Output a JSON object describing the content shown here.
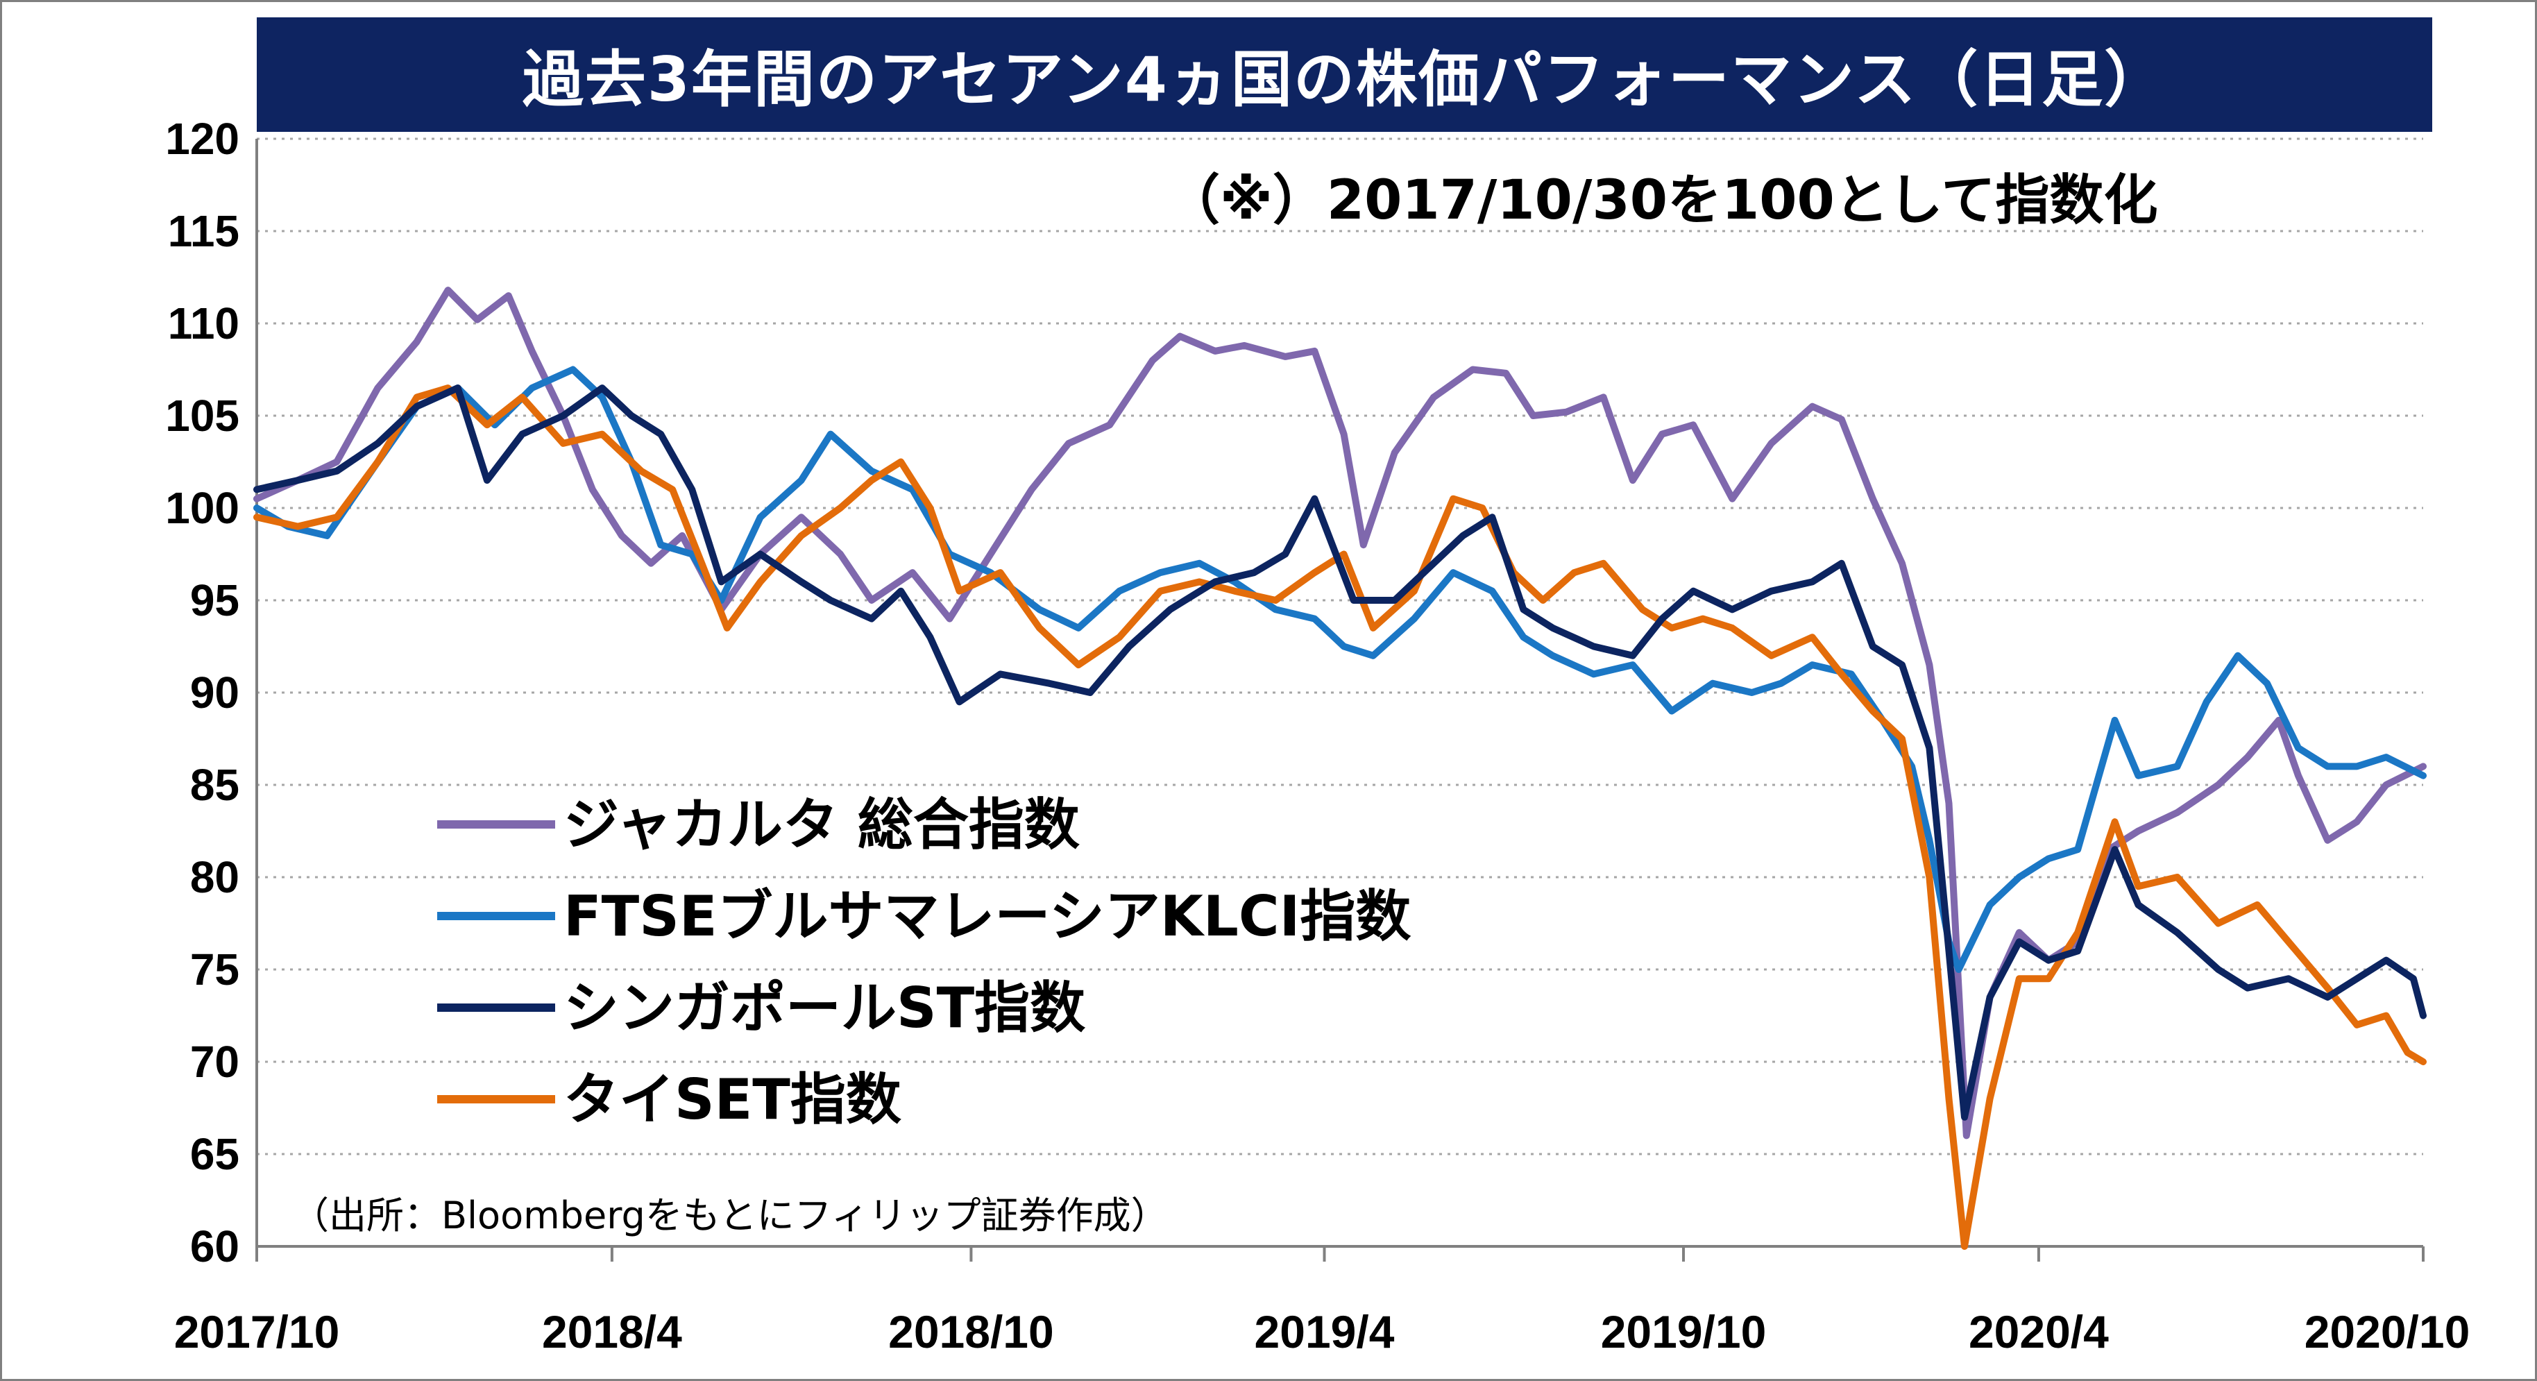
{
  "title": "過去3年間のアセアン4ヵ国の株価パフォーマンス（日足）",
  "note": "（※）2017/10/30を100として指数化",
  "source": "（出所：Bloombergをもとにフィリップ証券作成）",
  "chart_data": {
    "type": "line",
    "ylim": [
      60,
      120
    ],
    "yticks": [
      120,
      115,
      110,
      105,
      100,
      95,
      90,
      85,
      80,
      75,
      70,
      65,
      60
    ],
    "xlim": [
      "2017-10-30",
      "2020-11-13"
    ],
    "xticks": [
      {
        "label": "2017/10",
        "date": "2017-10-30"
      },
      {
        "label": "2018/4",
        "date": "2018-04-30"
      },
      {
        "label": "2018/10",
        "date": "2018-10-31"
      },
      {
        "label": "2019/4",
        "date": "2019-04-30"
      },
      {
        "label": "2019/10",
        "date": "2019-10-31"
      },
      {
        "label": "2020/4",
        "date": "2020-04-30"
      },
      {
        "label": "2020/10",
        "date": "2020-11-13"
      }
    ],
    "grid": "horizontal-dotted",
    "legend": "left-middle",
    "series": [
      {
        "name": "ジャカルタ 総合指数",
        "color": "#7f68ad",
        "points": [
          [
            "2017-10-30",
            100.5
          ],
          [
            "2017-11-20",
            101.5
          ],
          [
            "2017-12-10",
            102.5
          ],
          [
            "2017-12-31",
            106.5
          ],
          [
            "2018-01-20",
            109.0
          ],
          [
            "2018-02-05",
            111.8
          ],
          [
            "2018-02-20",
            110.2
          ],
          [
            "2018-03-08",
            111.5
          ],
          [
            "2018-03-20",
            108.5
          ],
          [
            "2018-04-05",
            105.0
          ],
          [
            "2018-04-20",
            101.0
          ],
          [
            "2018-05-05",
            98.5
          ],
          [
            "2018-05-20",
            97.0
          ],
          [
            "2018-06-05",
            98.5
          ],
          [
            "2018-06-25",
            94.5
          ],
          [
            "2018-07-15",
            97.5
          ],
          [
            "2018-08-05",
            99.5
          ],
          [
            "2018-08-25",
            97.5
          ],
          [
            "2018-09-10",
            95.0
          ],
          [
            "2018-10-01",
            96.5
          ],
          [
            "2018-10-20",
            94.0
          ],
          [
            "2018-11-10",
            97.5
          ],
          [
            "2018-12-01",
            101.0
          ],
          [
            "2018-12-20",
            103.5
          ],
          [
            "2019-01-10",
            104.5
          ],
          [
            "2019-02-01",
            108.0
          ],
          [
            "2019-02-15",
            109.3
          ],
          [
            "2019-03-05",
            108.5
          ],
          [
            "2019-03-20",
            108.8
          ],
          [
            "2019-04-10",
            108.2
          ],
          [
            "2019-04-25",
            108.5
          ],
          [
            "2019-05-10",
            104.0
          ],
          [
            "2019-05-20",
            98.0
          ],
          [
            "2019-06-05",
            103.0
          ],
          [
            "2019-06-25",
            106.0
          ],
          [
            "2019-07-15",
            107.5
          ],
          [
            "2019-08-01",
            107.3
          ],
          [
            "2019-08-15",
            105.0
          ],
          [
            "2019-09-01",
            105.2
          ],
          [
            "2019-09-20",
            106.0
          ],
          [
            "2019-10-05",
            101.5
          ],
          [
            "2019-10-20",
            104.0
          ],
          [
            "2019-11-05",
            104.5
          ],
          [
            "2019-11-25",
            100.5
          ],
          [
            "2019-12-15",
            103.5
          ],
          [
            "2020-01-05",
            105.5
          ],
          [
            "2020-01-20",
            104.8
          ],
          [
            "2020-02-05",
            100.5
          ],
          [
            "2020-02-20",
            97.0
          ],
          [
            "2020-03-05",
            91.5
          ],
          [
            "2020-03-15",
            84.0
          ],
          [
            "2020-03-24",
            66.0
          ],
          [
            "2020-04-05",
            73.5
          ],
          [
            "2020-04-20",
            77.0
          ],
          [
            "2020-05-05",
            75.5
          ],
          [
            "2020-05-20",
            76.5
          ],
          [
            "2020-06-05",
            81.5
          ],
          [
            "2020-06-20",
            82.5
          ],
          [
            "2020-07-10",
            83.5
          ],
          [
            "2020-07-31",
            85.0
          ],
          [
            "2020-08-15",
            86.5
          ],
          [
            "2020-08-31",
            88.5
          ],
          [
            "2020-09-10",
            85.5
          ],
          [
            "2020-09-25",
            82.0
          ],
          [
            "2020-10-10",
            83.0
          ],
          [
            "2020-10-25",
            85.0
          ],
          [
            "2020-11-13",
            86.0
          ]
        ]
      },
      {
        "name": "FTSEブルサマレーシアKLCI指数",
        "color": "#1b77c5",
        "points": [
          [
            "2017-10-30",
            100.0
          ],
          [
            "2017-11-15",
            99.0
          ],
          [
            "2017-12-05",
            98.5
          ],
          [
            "2017-12-31",
            102.5
          ],
          [
            "2018-01-20",
            105.5
          ],
          [
            "2018-02-10",
            106.5
          ],
          [
            "2018-03-01",
            104.5
          ],
          [
            "2018-03-20",
            106.5
          ],
          [
            "2018-04-10",
            107.5
          ],
          [
            "2018-04-25",
            106.0
          ],
          [
            "2018-05-10",
            102.5
          ],
          [
            "2018-05-25",
            98.0
          ],
          [
            "2018-06-10",
            97.5
          ],
          [
            "2018-06-25",
            95.0
          ],
          [
            "2018-07-15",
            99.5
          ],
          [
            "2018-08-05",
            101.5
          ],
          [
            "2018-08-20",
            104.0
          ],
          [
            "2018-09-10",
            102.0
          ],
          [
            "2018-10-01",
            101.0
          ],
          [
            "2018-10-20",
            97.5
          ],
          [
            "2018-11-10",
            96.5
          ],
          [
            "2018-12-05",
            94.5
          ],
          [
            "2018-12-25",
            93.5
          ],
          [
            "2019-01-15",
            95.5
          ],
          [
            "2019-02-05",
            96.5
          ],
          [
            "2019-02-25",
            97.0
          ],
          [
            "2019-03-15",
            96.0
          ],
          [
            "2019-04-05",
            94.5
          ],
          [
            "2019-04-25",
            94.0
          ],
          [
            "2019-05-10",
            92.5
          ],
          [
            "2019-05-25",
            92.0
          ],
          [
            "2019-06-15",
            94.0
          ],
          [
            "2019-07-05",
            96.5
          ],
          [
            "2019-07-25",
            95.5
          ],
          [
            "2019-08-10",
            93.0
          ],
          [
            "2019-08-25",
            92.0
          ],
          [
            "2019-09-15",
            91.0
          ],
          [
            "2019-10-05",
            91.5
          ],
          [
            "2019-10-25",
            89.0
          ],
          [
            "2019-11-15",
            90.5
          ],
          [
            "2019-12-05",
            90.0
          ],
          [
            "2019-12-20",
            90.5
          ],
          [
            "2020-01-05",
            91.5
          ],
          [
            "2020-01-25",
            91.0
          ],
          [
            "2020-02-10",
            88.5
          ],
          [
            "2020-02-25",
            86.0
          ],
          [
            "2020-03-05",
            82.0
          ],
          [
            "2020-03-15",
            76.5
          ],
          [
            "2020-03-20",
            75.0
          ],
          [
            "2020-04-05",
            78.5
          ],
          [
            "2020-04-20",
            80.0
          ],
          [
            "2020-05-05",
            81.0
          ],
          [
            "2020-05-20",
            81.5
          ],
          [
            "2020-06-08",
            88.5
          ],
          [
            "2020-06-20",
            85.5
          ],
          [
            "2020-07-10",
            86.0
          ],
          [
            "2020-07-25",
            89.5
          ],
          [
            "2020-08-10",
            92.0
          ],
          [
            "2020-08-25",
            90.5
          ],
          [
            "2020-09-10",
            87.0
          ],
          [
            "2020-09-25",
            86.0
          ],
          [
            "2020-10-10",
            86.0
          ],
          [
            "2020-10-25",
            86.5
          ],
          [
            "2020-11-13",
            85.5
          ]
        ]
      },
      {
        "name": "シンガポールST指数",
        "color": "#0c2460",
        "points": [
          [
            "2017-10-30",
            101.0
          ],
          [
            "2017-11-20",
            101.5
          ],
          [
            "2017-12-10",
            102.0
          ],
          [
            "2017-12-31",
            103.5
          ],
          [
            "2018-01-20",
            105.5
          ],
          [
            "2018-02-10",
            106.5
          ],
          [
            "2018-02-25",
            101.5
          ],
          [
            "2018-03-15",
            104.0
          ],
          [
            "2018-04-05",
            105.0
          ],
          [
            "2018-04-25",
            106.5
          ],
          [
            "2018-05-10",
            105.0
          ],
          [
            "2018-05-25",
            104.0
          ],
          [
            "2018-06-10",
            101.0
          ],
          [
            "2018-06-25",
            96.0
          ],
          [
            "2018-07-15",
            97.5
          ],
          [
            "2018-08-05",
            96.0
          ],
          [
            "2018-08-20",
            95.0
          ],
          [
            "2018-09-10",
            94.0
          ],
          [
            "2018-09-25",
            95.5
          ],
          [
            "2018-10-10",
            93.0
          ],
          [
            "2018-10-25",
            89.5
          ],
          [
            "2018-11-15",
            91.0
          ],
          [
            "2018-12-10",
            90.5
          ],
          [
            "2018-12-31",
            90.0
          ],
          [
            "2019-01-20",
            92.5
          ],
          [
            "2019-02-10",
            94.5
          ],
          [
            "2019-03-05",
            96.0
          ],
          [
            "2019-03-25",
            96.5
          ],
          [
            "2019-04-10",
            97.5
          ],
          [
            "2019-04-25",
            100.5
          ],
          [
            "2019-05-15",
            95.0
          ],
          [
            "2019-06-05",
            95.0
          ],
          [
            "2019-06-25",
            97.0
          ],
          [
            "2019-07-10",
            98.5
          ],
          [
            "2019-07-25",
            99.5
          ],
          [
            "2019-08-10",
            94.5
          ],
          [
            "2019-08-25",
            93.5
          ],
          [
            "2019-09-15",
            92.5
          ],
          [
            "2019-10-05",
            92.0
          ],
          [
            "2019-10-20",
            94.0
          ],
          [
            "2019-11-05",
            95.5
          ],
          [
            "2019-11-25",
            94.5
          ],
          [
            "2019-12-15",
            95.5
          ],
          [
            "2020-01-05",
            96.0
          ],
          [
            "2020-01-20",
            97.0
          ],
          [
            "2020-02-05",
            92.5
          ],
          [
            "2020-02-20",
            91.5
          ],
          [
            "2020-03-05",
            87.0
          ],
          [
            "2020-03-15",
            76.0
          ],
          [
            "2020-03-23",
            67.0
          ],
          [
            "2020-04-05",
            73.5
          ],
          [
            "2020-04-20",
            76.5
          ],
          [
            "2020-05-05",
            75.5
          ],
          [
            "2020-05-20",
            76.0
          ],
          [
            "2020-06-08",
            81.5
          ],
          [
            "2020-06-20",
            78.5
          ],
          [
            "2020-07-10",
            77.0
          ],
          [
            "2020-07-31",
            75.0
          ],
          [
            "2020-08-15",
            74.0
          ],
          [
            "2020-09-05",
            74.5
          ],
          [
            "2020-09-25",
            73.5
          ],
          [
            "2020-10-10",
            74.5
          ],
          [
            "2020-10-25",
            75.5
          ],
          [
            "2020-11-08",
            74.5
          ],
          [
            "2020-11-13",
            72.5
          ]
        ]
      },
      {
        "name": "タイSET指数",
        "color": "#e36c0a",
        "points": [
          [
            "2017-10-30",
            99.5
          ],
          [
            "2017-11-20",
            99.0
          ],
          [
            "2017-12-10",
            99.5
          ],
          [
            "2017-12-31",
            102.5
          ],
          [
            "2018-01-20",
            106.0
          ],
          [
            "2018-02-05",
            106.5
          ],
          [
            "2018-02-25",
            104.5
          ],
          [
            "2018-03-15",
            106.0
          ],
          [
            "2018-04-05",
            103.5
          ],
          [
            "2018-04-25",
            104.0
          ],
          [
            "2018-05-15",
            102.0
          ],
          [
            "2018-05-31",
            101.0
          ],
          [
            "2018-06-15",
            97.0
          ],
          [
            "2018-06-28",
            93.5
          ],
          [
            "2018-07-15",
            96.0
          ],
          [
            "2018-08-05",
            98.5
          ],
          [
            "2018-08-25",
            100.0
          ],
          [
            "2018-09-10",
            101.5
          ],
          [
            "2018-09-25",
            102.5
          ],
          [
            "2018-10-10",
            100.0
          ],
          [
            "2018-10-25",
            95.5
          ],
          [
            "2018-11-15",
            96.5
          ],
          [
            "2018-12-05",
            93.5
          ],
          [
            "2018-12-25",
            91.5
          ],
          [
            "2019-01-15",
            93.0
          ],
          [
            "2019-02-05",
            95.5
          ],
          [
            "2019-02-25",
            96.0
          ],
          [
            "2019-03-15",
            95.5
          ],
          [
            "2019-04-05",
            95.0
          ],
          [
            "2019-04-25",
            96.5
          ],
          [
            "2019-05-10",
            97.5
          ],
          [
            "2019-05-25",
            93.5
          ],
          [
            "2019-06-15",
            95.5
          ],
          [
            "2019-07-05",
            100.5
          ],
          [
            "2019-07-20",
            100.0
          ],
          [
            "2019-08-05",
            96.5
          ],
          [
            "2019-08-20",
            95.0
          ],
          [
            "2019-09-05",
            96.5
          ],
          [
            "2019-09-20",
            97.0
          ],
          [
            "2019-10-10",
            94.5
          ],
          [
            "2019-10-25",
            93.5
          ],
          [
            "2019-11-10",
            94.0
          ],
          [
            "2019-11-25",
            93.5
          ],
          [
            "2019-12-15",
            92.0
          ],
          [
            "2020-01-05",
            93.0
          ],
          [
            "2020-01-20",
            91.0
          ],
          [
            "2020-02-05",
            89.0
          ],
          [
            "2020-02-20",
            87.5
          ],
          [
            "2020-03-05",
            80.0
          ],
          [
            "2020-03-15",
            68.0
          ],
          [
            "2020-03-23",
            60.0
          ],
          [
            "2020-04-05",
            68.0
          ],
          [
            "2020-04-20",
            74.5
          ],
          [
            "2020-05-05",
            74.5
          ],
          [
            "2020-05-20",
            77.0
          ],
          [
            "2020-06-08",
            83.0
          ],
          [
            "2020-06-20",
            79.5
          ],
          [
            "2020-07-10",
            80.0
          ],
          [
            "2020-07-31",
            77.5
          ],
          [
            "2020-08-20",
            78.5
          ],
          [
            "2020-09-05",
            76.5
          ],
          [
            "2020-09-25",
            74.0
          ],
          [
            "2020-10-10",
            72.0
          ],
          [
            "2020-10-25",
            72.5
          ],
          [
            "2020-11-05",
            70.5
          ],
          [
            "2020-11-13",
            70.0
          ]
        ]
      }
    ]
  }
}
